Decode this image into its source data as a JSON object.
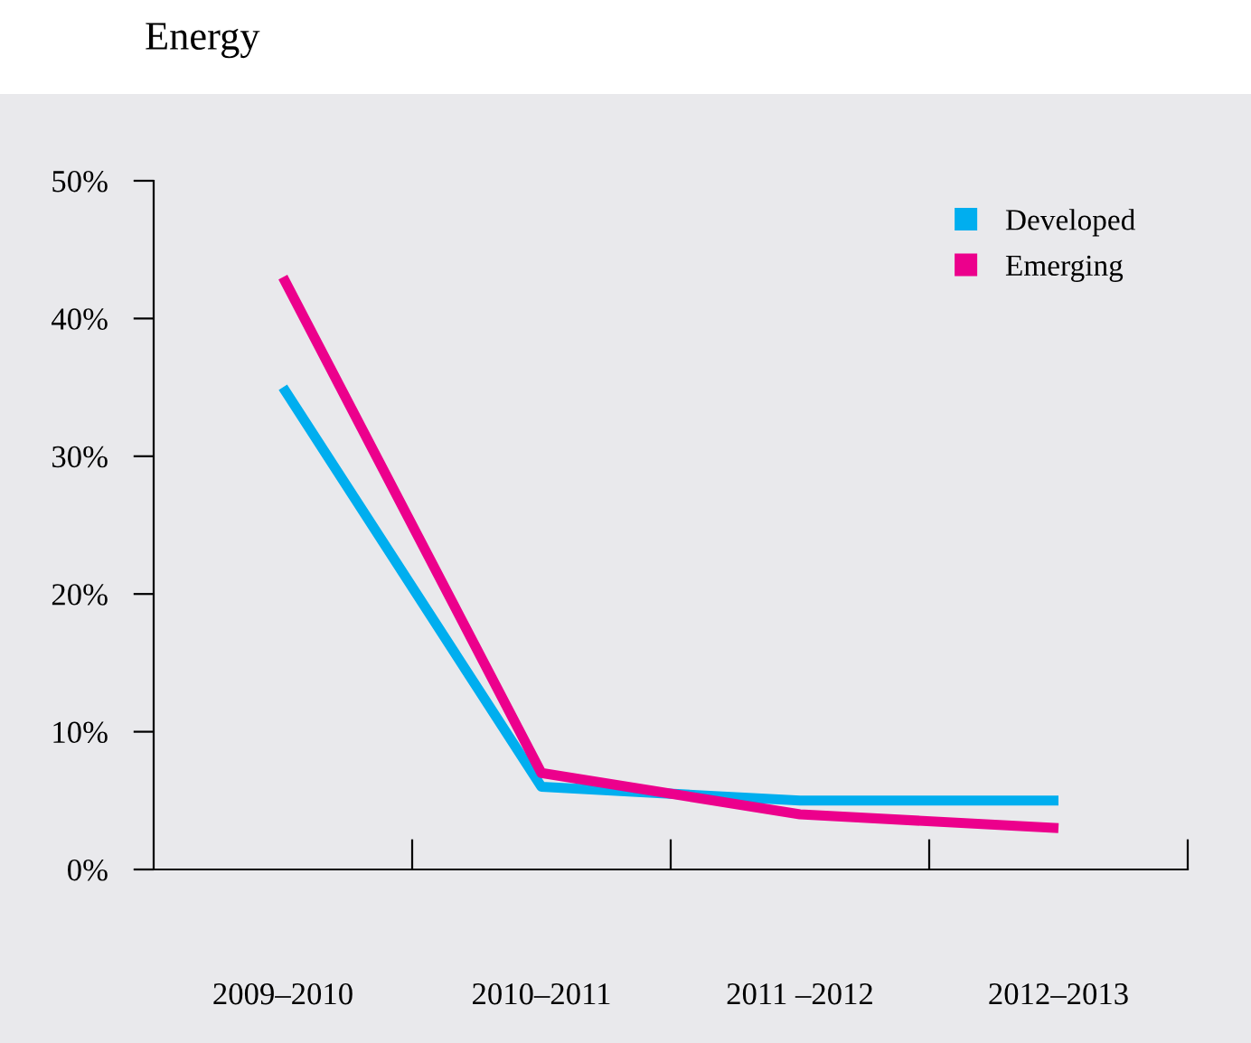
{
  "chart_data": {
    "type": "line",
    "title": "Energy",
    "categories": [
      "2009–2010",
      "2010–2011",
      "2011 –2012",
      "2012–2013"
    ],
    "series": [
      {
        "name": "Developed",
        "color": "#00aeef",
        "values": [
          35,
          6,
          5,
          5
        ]
      },
      {
        "name": "Emerging",
        "color": "#ec008c",
        "values": [
          43,
          7,
          4,
          3
        ]
      }
    ],
    "ylim": [
      0,
      50
    ],
    "yticks": [
      {
        "value": 0,
        "label": "0%"
      },
      {
        "value": 10,
        "label": "10%"
      },
      {
        "value": 20,
        "label": "20%"
      },
      {
        "value": 30,
        "label": "30%"
      },
      {
        "value": 40,
        "label": "40%"
      },
      {
        "value": 50,
        "label": "50%"
      }
    ],
    "grid": false,
    "legend": "top right",
    "marker": "none",
    "line_style": "solid"
  }
}
